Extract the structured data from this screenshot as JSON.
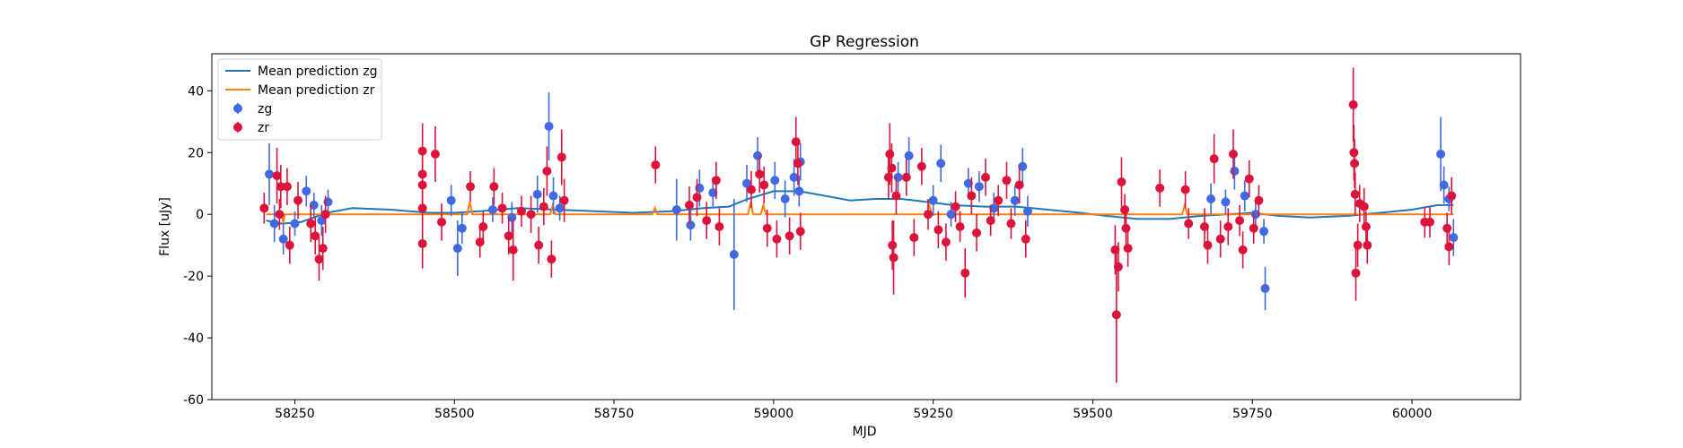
{
  "chart_data": {
    "type": "scatter",
    "title": "GP Regression",
    "xlabel": "MJD",
    "ylabel": "Flux [uJy]",
    "xlim": [
      58120,
      60170
    ],
    "ylim": [
      -60,
      52
    ],
    "xticks": [
      58250,
      58500,
      58750,
      59000,
      59250,
      59500,
      59750,
      60000
    ],
    "yticks": [
      -60,
      -40,
      -20,
      0,
      20,
      40
    ],
    "legend": {
      "position": "top-left",
      "entries": [
        {
          "label": "Mean prediction zg",
          "kind": "line",
          "color": "#1f77b4"
        },
        {
          "label": "Mean prediction zr",
          "kind": "line",
          "color": "#ff7f0e"
        },
        {
          "label": "zg",
          "kind": "marker",
          "color": "#4169e1"
        },
        {
          "label": "zr",
          "kind": "marker",
          "color": "#dc143c"
        }
      ]
    },
    "lines": [
      {
        "name": "Mean prediction zg",
        "color": "#1f77b4",
        "x": [
          58205,
          58230,
          58260,
          58300,
          58340,
          58400,
          58460,
          58500,
          58540,
          58600,
          58660,
          58720,
          58780,
          58840,
          58890,
          58930,
          58960,
          59000,
          59040,
          59080,
          59120,
          59160,
          59200,
          59240,
          59280,
          59330,
          59380,
          59430,
          59480,
          59520,
          59570,
          59620,
          59670,
          59710,
          59750,
          59790,
          59840,
          59900,
          59950,
          60000,
          60040,
          60065
        ],
        "y": [
          -2,
          -3,
          -2.5,
          0.5,
          2,
          1.5,
          0.5,
          0.5,
          1,
          2,
          1.5,
          1,
          0.5,
          1,
          2,
          2.5,
          5,
          7.5,
          7.5,
          6,
          4.5,
          5,
          5,
          4,
          3,
          2.5,
          2.5,
          1.5,
          0.5,
          -0.5,
          -1.5,
          -1.5,
          -0.5,
          0,
          0.5,
          -0.5,
          -1,
          -0.5,
          0.5,
          1.5,
          3,
          3
        ]
      },
      {
        "name": "Mean prediction zr",
        "color": "#ff7f0e",
        "x": [
          58205,
          58230,
          58232,
          58234,
          58300,
          58520,
          58524,
          58528,
          58650,
          58654,
          58658,
          58810,
          58814,
          58818,
          58960,
          58964,
          58968,
          58980,
          58984,
          58988,
          59240,
          59244,
          59248,
          59640,
          59644,
          59648,
          60065
        ],
        "y": [
          0,
          0,
          -3,
          0,
          0,
          0,
          4,
          0,
          0,
          3,
          0,
          0,
          2,
          0,
          0,
          4,
          0,
          0,
          3,
          0,
          0,
          3,
          0,
          0,
          3,
          0,
          0
        ]
      }
    ],
    "series": [
      {
        "name": "zg",
        "color": "#4169e1",
        "points": [
          {
            "x": 58210,
            "y": 13,
            "err": 10
          },
          {
            "x": 58218,
            "y": -3,
            "err": 6
          },
          {
            "x": 58232,
            "y": -8,
            "err": 5
          },
          {
            "x": 58250,
            "y": -3,
            "err": 4
          },
          {
            "x": 58268,
            "y": 7.5,
            "err": 5
          },
          {
            "x": 58280,
            "y": 3,
            "err": 4
          },
          {
            "x": 58292,
            "y": -2,
            "err": 5
          },
          {
            "x": 58302,
            "y": 4,
            "err": 4
          },
          {
            "x": 58495,
            "y": 4.5,
            "err": 5
          },
          {
            "x": 58505,
            "y": -11,
            "err": 9
          },
          {
            "x": 58512,
            "y": -4.5,
            "err": 5
          },
          {
            "x": 58560,
            "y": 1.5,
            "err": 4
          },
          {
            "x": 58590,
            "y": -1,
            "err": 5
          },
          {
            "x": 58630,
            "y": 6.5,
            "err": 6
          },
          {
            "x": 58648,
            "y": 28.5,
            "err": 11
          },
          {
            "x": 58655,
            "y": 6,
            "err": 6
          },
          {
            "x": 58665,
            "y": 2,
            "err": 4
          },
          {
            "x": 58848,
            "y": 1.5,
            "err": 10
          },
          {
            "x": 58870,
            "y": -3.5,
            "err": 5
          },
          {
            "x": 58884,
            "y": 8.5,
            "err": 6
          },
          {
            "x": 58905,
            "y": 7,
            "err": 5
          },
          {
            "x": 58938,
            "y": -13,
            "err": 18
          },
          {
            "x": 58958,
            "y": 10,
            "err": 6
          },
          {
            "x": 58975,
            "y": 19,
            "err": 6
          },
          {
            "x": 59002,
            "y": 11,
            "err": 6
          },
          {
            "x": 59018,
            "y": 5,
            "err": 6
          },
          {
            "x": 59032,
            "y": 12,
            "err": 6
          },
          {
            "x": 59042,
            "y": 17,
            "err": 6
          },
          {
            "x": 59040,
            "y": 7.5,
            "err": 5
          },
          {
            "x": 59195,
            "y": 12,
            "err": 5
          },
          {
            "x": 59212,
            "y": 19,
            "err": 6
          },
          {
            "x": 59250,
            "y": 4.5,
            "err": 5
          },
          {
            "x": 59262,
            "y": 16.5,
            "err": 6
          },
          {
            "x": 59278,
            "y": 0,
            "err": 4
          },
          {
            "x": 59305,
            "y": 10,
            "err": 5
          },
          {
            "x": 59322,
            "y": 9,
            "err": 5
          },
          {
            "x": 59345,
            "y": 2,
            "err": 5
          },
          {
            "x": 59378,
            "y": 4.5,
            "err": 5
          },
          {
            "x": 59390,
            "y": 15.5,
            "err": 6
          },
          {
            "x": 59398,
            "y": 1,
            "err": 5
          },
          {
            "x": 59685,
            "y": 5,
            "err": 5
          },
          {
            "x": 59708,
            "y": 4,
            "err": 4
          },
          {
            "x": 59722,
            "y": 14,
            "err": 6
          },
          {
            "x": 59738,
            "y": 6,
            "err": 5
          },
          {
            "x": 59755,
            "y": 0,
            "err": 5
          },
          {
            "x": 59768,
            "y": -5.5,
            "err": 4
          },
          {
            "x": 59770,
            "y": -24,
            "err": 7
          },
          {
            "x": 60045,
            "y": 19.5,
            "err": 12
          },
          {
            "x": 60050,
            "y": 9.5,
            "err": 6
          },
          {
            "x": 60058,
            "y": 5,
            "err": 4
          },
          {
            "x": 60065,
            "y": -7.5,
            "err": 6
          }
        ]
      },
      {
        "name": "zr",
        "color": "#dc143c",
        "points": [
          {
            "x": 58202,
            "y": 2,
            "err": 5
          },
          {
            "x": 58222,
            "y": 12.5,
            "err": 9
          },
          {
            "x": 58228,
            "y": 9,
            "err": 7
          },
          {
            "x": 58238,
            "y": 9,
            "err": 6
          },
          {
            "x": 58226,
            "y": 0,
            "err": 5
          },
          {
            "x": 58242,
            "y": -10,
            "err": 6
          },
          {
            "x": 58255,
            "y": 4.5,
            "err": 6
          },
          {
            "x": 58275,
            "y": -3,
            "err": 6
          },
          {
            "x": 58282,
            "y": -7,
            "err": 6
          },
          {
            "x": 58288,
            "y": -14.5,
            "err": 7
          },
          {
            "x": 58294,
            "y": -11,
            "err": 7
          },
          {
            "x": 58298,
            "y": 0,
            "err": 6
          },
          {
            "x": 58450,
            "y": 20.5,
            "err": 9
          },
          {
            "x": 58450,
            "y": 13,
            "err": 8
          },
          {
            "x": 58450,
            "y": 9.5,
            "err": 7
          },
          {
            "x": 58450,
            "y": -9.5,
            "err": 8
          },
          {
            "x": 58450,
            "y": 2,
            "err": 6
          },
          {
            "x": 58470,
            "y": 19.5,
            "err": 9
          },
          {
            "x": 58480,
            "y": -2.5,
            "err": 6
          },
          {
            "x": 58525,
            "y": 9,
            "err": 5
          },
          {
            "x": 58540,
            "y": -9,
            "err": 5
          },
          {
            "x": 58545,
            "y": -4,
            "err": 5
          },
          {
            "x": 58562,
            "y": 9,
            "err": 6
          },
          {
            "x": 58575,
            "y": 2,
            "err": 5
          },
          {
            "x": 58585,
            "y": -7,
            "err": 6
          },
          {
            "x": 58592,
            "y": -11.5,
            "err": 10
          },
          {
            "x": 58605,
            "y": 1,
            "err": 5
          },
          {
            "x": 58620,
            "y": 0,
            "err": 6
          },
          {
            "x": 58632,
            "y": -10,
            "err": 6
          },
          {
            "x": 58640,
            "y": 2.5,
            "err": 6
          },
          {
            "x": 58645,
            "y": 14,
            "err": 8
          },
          {
            "x": 58652,
            "y": -14.5,
            "err": 6
          },
          {
            "x": 58668,
            "y": 18.5,
            "err": 9
          },
          {
            "x": 58672,
            "y": 4.5,
            "err": 7
          },
          {
            "x": 58815,
            "y": 16,
            "err": 6
          },
          {
            "x": 58868,
            "y": 3,
            "err": 6
          },
          {
            "x": 58880,
            "y": 5.5,
            "err": 6
          },
          {
            "x": 58895,
            "y": -2,
            "err": 6
          },
          {
            "x": 58910,
            "y": 11,
            "err": 6
          },
          {
            "x": 58915,
            "y": -4,
            "err": 6
          },
          {
            "x": 58965,
            "y": 8,
            "err": 6
          },
          {
            "x": 58978,
            "y": 13,
            "err": 6
          },
          {
            "x": 58985,
            "y": 9.5,
            "err": 6
          },
          {
            "x": 58990,
            "y": -4.5,
            "err": 6
          },
          {
            "x": 59005,
            "y": -8,
            "err": 6
          },
          {
            "x": 59025,
            "y": -7,
            "err": 6
          },
          {
            "x": 59035,
            "y": 23.5,
            "err": 8
          },
          {
            "x": 59038,
            "y": 16.5,
            "err": 7
          },
          {
            "x": 59042,
            "y": -5.5,
            "err": 6
          },
          {
            "x": 59180,
            "y": 12,
            "err": 7
          },
          {
            "x": 59182,
            "y": 19.5,
            "err": 10
          },
          {
            "x": 59185,
            "y": 15,
            "err": 8
          },
          {
            "x": 59186,
            "y": -10,
            "err": 8
          },
          {
            "x": 59188,
            "y": -14,
            "err": 12
          },
          {
            "x": 59192,
            "y": 6,
            "err": 6
          },
          {
            "x": 59208,
            "y": 12,
            "err": 6
          },
          {
            "x": 59220,
            "y": -7.5,
            "err": 6
          },
          {
            "x": 59232,
            "y": 15.5,
            "err": 6
          },
          {
            "x": 59242,
            "y": 0,
            "err": 5
          },
          {
            "x": 59258,
            "y": -5,
            "err": 6
          },
          {
            "x": 59270,
            "y": -9,
            "err": 6
          },
          {
            "x": 59285,
            "y": 2.5,
            "err": 5
          },
          {
            "x": 59292,
            "y": -4,
            "err": 5
          },
          {
            "x": 59300,
            "y": -19,
            "err": 8
          },
          {
            "x": 59310,
            "y": 6,
            "err": 6
          },
          {
            "x": 59318,
            "y": -6,
            "err": 6
          },
          {
            "x": 59332,
            "y": 12,
            "err": 6
          },
          {
            "x": 59340,
            "y": -2,
            "err": 5
          },
          {
            "x": 59352,
            "y": 4.5,
            "err": 5
          },
          {
            "x": 59365,
            "y": 11,
            "err": 6
          },
          {
            "x": 59372,
            "y": -3,
            "err": 5
          },
          {
            "x": 59385,
            "y": 9.5,
            "err": 6
          },
          {
            "x": 59395,
            "y": -8,
            "err": 6
          },
          {
            "x": 59535,
            "y": -11.5,
            "err": 8
          },
          {
            "x": 59537,
            "y": -32.5,
            "err": 22
          },
          {
            "x": 59540,
            "y": -17,
            "err": 8
          },
          {
            "x": 59545,
            "y": 10.5,
            "err": 8
          },
          {
            "x": 59550,
            "y": 1.5,
            "err": 5
          },
          {
            "x": 59552,
            "y": -4.5,
            "err": 6
          },
          {
            "x": 59555,
            "y": -11,
            "err": 6
          },
          {
            "x": 59605,
            "y": 8.5,
            "err": 6
          },
          {
            "x": 59645,
            "y": 8,
            "err": 6
          },
          {
            "x": 59650,
            "y": -3,
            "err": 5
          },
          {
            "x": 59675,
            "y": -4,
            "err": 6
          },
          {
            "x": 59680,
            "y": -10,
            "err": 6
          },
          {
            "x": 59690,
            "y": 18,
            "err": 8
          },
          {
            "x": 59700,
            "y": -8,
            "err": 6
          },
          {
            "x": 59712,
            "y": -4,
            "err": 6
          },
          {
            "x": 59720,
            "y": 19.5,
            "err": 8
          },
          {
            "x": 59730,
            "y": -2,
            "err": 5
          },
          {
            "x": 59735,
            "y": -11.5,
            "err": 6
          },
          {
            "x": 59745,
            "y": 11.5,
            "err": 6
          },
          {
            "x": 59752,
            "y": -4.5,
            "err": 5
          },
          {
            "x": 59760,
            "y": 4.5,
            "err": 5
          },
          {
            "x": 59908,
            "y": 35.5,
            "err": 12
          },
          {
            "x": 59909,
            "y": 20,
            "err": 9
          },
          {
            "x": 59910,
            "y": 16.5,
            "err": 8
          },
          {
            "x": 59911,
            "y": 6.5,
            "err": 7
          },
          {
            "x": 59912,
            "y": -19,
            "err": 9
          },
          {
            "x": 59915,
            "y": -10,
            "err": 7
          },
          {
            "x": 59918,
            "y": 3.5,
            "err": 6
          },
          {
            "x": 59925,
            "y": 2.5,
            "err": 6
          },
          {
            "x": 59928,
            "y": -4,
            "err": 5
          },
          {
            "x": 59930,
            "y": -10,
            "err": 6
          },
          {
            "x": 60020,
            "y": -2.5,
            "err": 5
          },
          {
            "x": 60028,
            "y": -2.5,
            "err": 5
          },
          {
            "x": 60055,
            "y": -4.5,
            "err": 5
          },
          {
            "x": 60058,
            "y": -10.5,
            "err": 6
          },
          {
            "x": 60062,
            "y": 6,
            "err": 6
          }
        ]
      }
    ]
  }
}
